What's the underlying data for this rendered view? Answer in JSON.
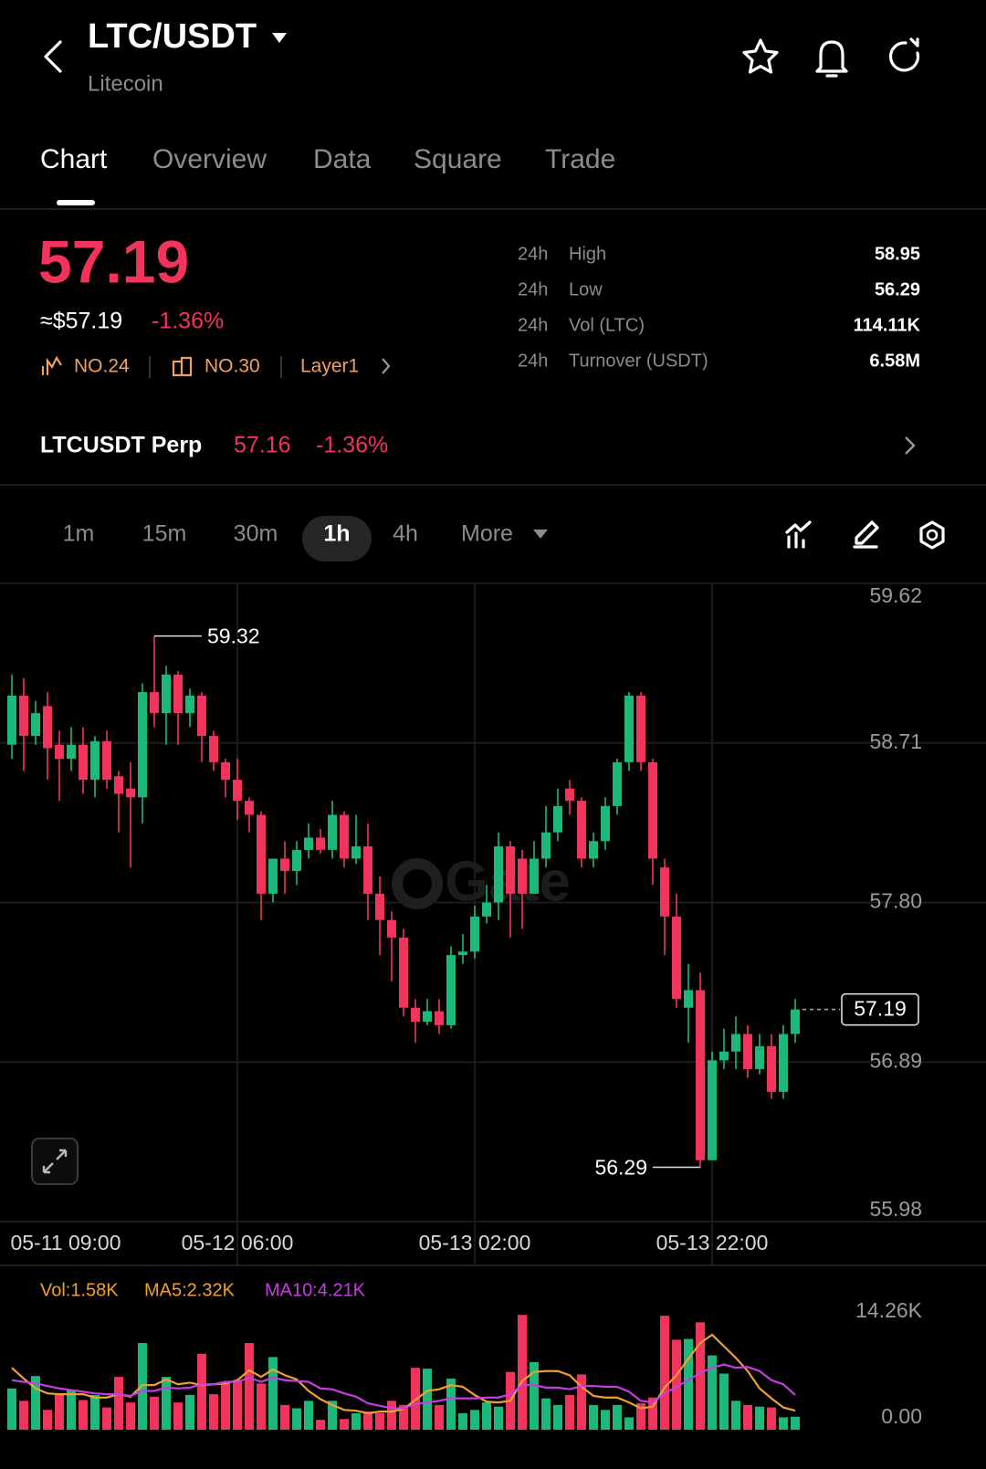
{
  "header": {
    "pair": "LTC/USDT",
    "name": "Litecoin"
  },
  "tabs": [
    "Chart",
    "Overview",
    "Data",
    "Square",
    "Trade"
  ],
  "price": {
    "last": "57.19",
    "usd": "≈$57.19",
    "change": "-1.36%"
  },
  "tags": [
    "NO.24",
    "NO.30",
    "Layer1"
  ],
  "stats": [
    [
      "24h",
      "High",
      "58.95"
    ],
    [
      "24h",
      "Low",
      "56.29"
    ],
    [
      "24h",
      "Vol (LTC)",
      "114.11K"
    ],
    [
      "24h",
      "Turnover (USDT)",
      "6.58M"
    ]
  ],
  "perp": {
    "name": "LTCUSDT Perp",
    "price": "57.16",
    "change": "-1.36%"
  },
  "intervals": [
    "1m",
    "15m",
    "30m",
    "1h",
    "4h",
    "More"
  ],
  "chart_data": [
    {
      "type": "candlestick",
      "watermark": "Gate",
      "up_color": "#1db97a",
      "down_color": "#f2345c",
      "grid": true,
      "categories": [
        "05-11 09:00",
        null,
        null,
        null,
        null,
        null,
        null,
        null,
        null,
        null,
        null,
        null,
        null,
        null,
        null,
        null,
        null,
        null,
        null,
        "05-12 06:00",
        null,
        null,
        null,
        null,
        null,
        null,
        null,
        null,
        null,
        null,
        null,
        null,
        null,
        null,
        null,
        null,
        null,
        null,
        null,
        "05-13 02:00",
        null,
        null,
        null,
        null,
        null,
        null,
        null,
        null,
        null,
        null,
        null,
        null,
        null,
        null,
        null,
        null,
        null,
        null,
        null,
        "05-13 22:00",
        null,
        null,
        null,
        null,
        null,
        null,
        null
      ],
      "open": [
        58.7,
        58.98,
        58.75,
        58.92,
        58.7,
        58.62,
        58.7,
        58.5,
        58.72,
        58.52,
        58.45,
        58.4,
        59.0,
        58.88,
        59.1,
        58.88,
        58.98,
        58.75,
        58.6,
        58.5,
        58.38,
        58.3,
        57.85,
        58.05,
        57.98,
        58.1,
        58.17,
        58.1,
        58.3,
        58.05,
        58.12,
        57.85,
        57.7,
        57.6,
        57.2,
        57.12,
        57.18,
        57.1,
        57.5,
        57.52,
        57.72,
        57.8,
        58.12,
        58.05,
        57.85,
        58.05,
        58.2,
        58.45,
        58.38,
        58.05,
        58.15,
        58.35,
        58.6,
        58.98,
        58.6,
        58.0,
        57.72,
        57.2,
        57.3,
        56.33,
        56.9,
        56.95,
        57.05,
        56.85,
        56.98,
        56.72,
        57.05
      ],
      "high": [
        59.1,
        59.08,
        58.95,
        59.0,
        58.78,
        58.8,
        58.8,
        58.75,
        58.78,
        58.55,
        58.6,
        59.05,
        59.32,
        59.15,
        59.12,
        59.02,
        59.0,
        58.78,
        58.62,
        58.62,
        58.4,
        58.32,
        58.05,
        58.15,
        58.15,
        58.25,
        58.22,
        58.38,
        58.32,
        58.3,
        58.25,
        57.95,
        57.75,
        57.65,
        57.25,
        57.25,
        57.25,
        57.55,
        57.62,
        57.78,
        57.9,
        58.2,
        58.15,
        58.1,
        58.15,
        58.35,
        58.45,
        58.5,
        58.4,
        58.2,
        58.4,
        58.62,
        59.0,
        59.0,
        58.62,
        58.05,
        57.85,
        57.45,
        57.4,
        56.95,
        57.08,
        57.15,
        57.1,
        57.05,
        57.05,
        57.1,
        57.25
      ],
      "low": [
        58.62,
        58.55,
        58.7,
        58.5,
        58.38,
        58.55,
        58.42,
        58.4,
        58.45,
        58.2,
        58.0,
        58.25,
        58.8,
        58.7,
        58.7,
        58.8,
        58.6,
        58.55,
        58.4,
        58.27,
        58.2,
        57.7,
        57.8,
        57.85,
        57.9,
        58.05,
        58.08,
        58.05,
        58.0,
        58.02,
        57.7,
        57.5,
        57.35,
        57.15,
        57.0,
        57.1,
        57.05,
        57.08,
        57.45,
        57.48,
        57.68,
        57.7,
        57.6,
        57.65,
        57.85,
        58.0,
        58.15,
        58.3,
        58.0,
        58.0,
        58.1,
        58.3,
        58.55,
        58.55,
        57.9,
        57.5,
        57.2,
        57.0,
        56.29,
        56.33,
        56.85,
        56.85,
        56.8,
        56.82,
        56.68,
        56.68,
        57.0
      ],
      "close": [
        58.98,
        58.75,
        58.88,
        58.68,
        58.62,
        58.7,
        58.5,
        58.72,
        58.5,
        58.42,
        58.4,
        59.0,
        58.88,
        59.1,
        58.88,
        58.98,
        58.75,
        58.6,
        58.5,
        58.38,
        58.3,
        57.85,
        58.05,
        57.98,
        58.1,
        58.17,
        58.1,
        58.3,
        58.05,
        58.12,
        57.85,
        57.7,
        57.6,
        57.2,
        57.12,
        57.18,
        57.1,
        57.5,
        57.52,
        57.72,
        57.8,
        58.12,
        57.85,
        57.85,
        58.05,
        58.2,
        58.35,
        58.38,
        58.05,
        58.15,
        58.35,
        58.6,
        58.98,
        58.6,
        58.05,
        57.72,
        57.25,
        57.3,
        56.33,
        56.9,
        56.95,
        57.05,
        56.85,
        56.98,
        56.72,
        57.05,
        57.19
      ],
      "ylim": [
        55.98,
        59.62
      ],
      "yticks": [
        55.98,
        56.89,
        {
          "value": 57.8,
          "label": "57.80"
        },
        58.71,
        59.62
      ]
    },
    {
      "type": "bar",
      "name": "Vol:1.58K",
      "name_color": "#f0a030",
      "grid": false,
      "values": [
        5.0,
        3.5,
        6.5,
        2.4,
        4.3,
        4.8,
        3.6,
        4.2,
        2.7,
        6.4,
        3.3,
        10.5,
        4.0,
        6.4,
        3.3,
        4.2,
        9.2,
        4.3,
        5.8,
        6.0,
        10.5,
        5.6,
        8.8,
        3.0,
        2.6,
        3.5,
        1.2,
        3.5,
        1.3,
        2.0,
        2.2,
        2.0,
        3.5,
        3.0,
        7.5,
        7.4,
        3.0,
        6.2,
        2.0,
        2.4,
        3.3,
        2.8,
        7.0,
        13.9,
        8.2,
        3.8,
        3.0,
        4.2,
        6.7,
        3.0,
        2.4,
        3.0,
        1.5,
        3.2,
        3.9,
        13.8,
        10.9,
        11.0,
        13.0,
        9.0,
        6.8,
        3.5,
        3.0,
        2.8,
        2.7,
        1.5,
        1.58
      ],
      "series": [
        {
          "name": "MA5:2.32K",
          "color": "#f0a030",
          "values": [
            7.5,
            6.2,
            5.0,
            4.4,
            4.3,
            4.3,
            4.3,
            3.9,
            3.9,
            4.3,
            4.0,
            5.4,
            5.4,
            6.1,
            5.5,
            5.7,
            5.4,
            5.5,
            5.6,
            6.0,
            7.2,
            6.4,
            7.3,
            6.6,
            6.1,
            4.7,
            3.7,
            3.0,
            2.4,
            2.3,
            2.0,
            2.2,
            2.2,
            2.5,
            3.6,
            4.7,
            4.9,
            5.4,
            5.2,
            4.2,
            3.4,
            3.3,
            3.5,
            5.9,
            7.0,
            7.1,
            7.1,
            6.6,
            5.2,
            4.1,
            3.9,
            3.9,
            3.3,
            2.6,
            2.8,
            5.1,
            6.6,
            8.6,
            10.5,
            11.5,
            10.1,
            8.7,
            7.1,
            5.0,
            3.8,
            2.7,
            2.32
          ]
        },
        {
          "name": "MA10:4.21K",
          "color": "#c43ee0",
          "values": [
            6.0,
            5.8,
            5.6,
            5.3,
            5.0,
            4.8,
            4.6,
            4.4,
            4.3,
            4.3,
            4.1,
            4.7,
            4.7,
            5.1,
            5.0,
            5.1,
            5.5,
            5.5,
            5.8,
            5.8,
            6.3,
            5.8,
            6.3,
            6.0,
            5.9,
            5.8,
            5.0,
            4.9,
            4.4,
            4.0,
            3.2,
            2.9,
            2.6,
            2.6,
            3.1,
            3.3,
            3.5,
            3.8,
            3.8,
            3.8,
            3.9,
            3.9,
            4.3,
            5.4,
            5.4,
            5.1,
            5.1,
            4.9,
            5.3,
            5.3,
            5.2,
            5.2,
            4.6,
            3.5,
            3.3,
            4.4,
            5.2,
            6.0,
            6.9,
            7.5,
            7.9,
            7.5,
            7.6,
            7.1,
            6.0,
            5.5,
            4.21
          ]
        }
      ],
      "ylim": [
        0,
        14.26
      ],
      "yticks": [
        {
          "value": 0,
          "label": "0.00"
        },
        {
          "value": 14.26,
          "label": "14.26K"
        }
      ]
    }
  ]
}
